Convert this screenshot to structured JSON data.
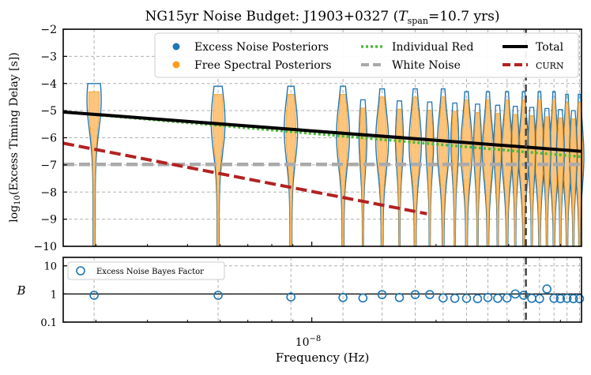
{
  "chart_data": [
    {
      "type": "violin",
      "title_main": "NG15yr Noise Budget: J1903+0327 (",
      "title_T": "T",
      "title_sub": "span",
      "title_rest": "=10.7 yrs)",
      "xlabel": "Frequency (Hz)",
      "ylabel_prefix": "log",
      "ylabel_sub": "10",
      "ylabel_rest": "(Excess Timing Delay [s])",
      "xscale": "log",
      "xlim": [
        2.5e-09,
        4.5e-08
      ],
      "ylim": [
        -10,
        -2
      ],
      "yticks": [
        -10,
        -9,
        -8,
        -7,
        -6,
        -5,
        -4,
        -3,
        -2
      ],
      "ytick_labels": [
        "−10",
        "−9",
        "−8",
        "−7",
        "−6",
        "−5",
        "−4",
        "−3",
        "−2"
      ],
      "xtick_label_base": "10",
      "xtick_label_exp": "−8",
      "xtick_value": 1e-08,
      "grid": true,
      "frequencies": [
        2.97e-09,
        5.93e-09,
        8.9e-09,
        1.19e-08,
        1.48e-08,
        1.78e-08,
        2.08e-08,
        2.37e-08,
        2.67e-08,
        2.97e-08,
        3.26e-08,
        3.56e-08,
        3.86e-08,
        4.15e-08,
        4.45e-08
      ],
      "excess_violin_top": [
        -4.0,
        -4.1,
        -4.1,
        -4.1,
        -4.2,
        -4.2,
        -4.2,
        -4.3,
        -4.3,
        -4.3,
        -4.3,
        -4.3,
        -4.3,
        -4.4,
        -4.4
      ],
      "excess_violin_peak": [
        -4.6,
        -5.4,
        -5.7,
        -5.9,
        -6.1,
        -6.2,
        -6.3,
        -6.4,
        -6.5,
        -6.5,
        -6.6,
        -6.6,
        -6.7,
        -6.7,
        -6.7
      ],
      "legend": {
        "location": "upper right",
        "excess_noise": "Excess Noise Posteriors",
        "free_spectral": "Free Spectral Posteriors",
        "individual_red": "Individual Red",
        "white_noise": "White Noise",
        "total": "Total",
        "curn": "CURN"
      },
      "colors": {
        "excess": "#1f77b4",
        "free_spectral": "#ff9d1c",
        "free_spectral_fill": "#fdbf6f",
        "individual_red": "#4dbb3a",
        "white_noise": "#aaaaaa",
        "total": "#000000",
        "curn": "#b22222",
        "vline": "#444444"
      },
      "series": [
        {
          "name": "Total",
          "x": [
            2.5e-09,
            4.5e-08
          ],
          "y": [
            -5.05,
            -6.5
          ]
        },
        {
          "name": "Individual Red",
          "x": [
            2.5e-09,
            4.5e-08
          ],
          "y": [
            -5.05,
            -6.7
          ]
        },
        {
          "name": "White Noise",
          "x": [
            2.5e-09,
            4.5e-08
          ],
          "y": [
            -6.98,
            -6.98
          ]
        },
        {
          "name": "CURN",
          "x": [
            2.5e-09,
            1.9e-08
          ],
          "y": [
            -6.2,
            -8.8
          ]
        }
      ],
      "vline_x": 3.3e-08
    },
    {
      "type": "scatter",
      "ylabel": "B",
      "yscale": "log",
      "ylim": [
        0.1,
        20
      ],
      "yticks": [
        0.1,
        1,
        10
      ],
      "ytick_labels": [
        "0.1",
        "1",
        "10"
      ],
      "legend_label": "Excess Noise Bayes Factor",
      "reference_line": 1,
      "x": [
        2.97e-09,
        5.93e-09,
        8.9e-09,
        1.19e-08,
        1.48e-08,
        1.78e-08,
        2.08e-08,
        2.37e-08,
        2.67e-08,
        2.97e-08,
        3.26e-08,
        3.56e-08,
        3.86e-08,
        4.15e-08,
        4.45e-08
      ],
      "y": [
        0.9,
        0.9,
        0.78,
        0.75,
        0.95,
        0.95,
        0.72,
        0.7,
        0.75,
        0.72,
        0.9,
        0.68,
        0.7,
        0.7,
        0.68
      ],
      "y_extra": {
        "x": [
          1.33e-08,
          1.63e-08,
          1.93e-08,
          2.22e-08,
          2.52e-08,
          2.82e-08,
          3.11e-08,
          3.41e-08,
          3.71e-08,
          4e-08,
          4.3e-08
        ],
        "y": [
          0.72,
          0.75,
          0.95,
          0.7,
          0.68,
          0.7,
          1.0,
          0.7,
          1.5,
          0.68,
          0.68
        ]
      }
    }
  ]
}
